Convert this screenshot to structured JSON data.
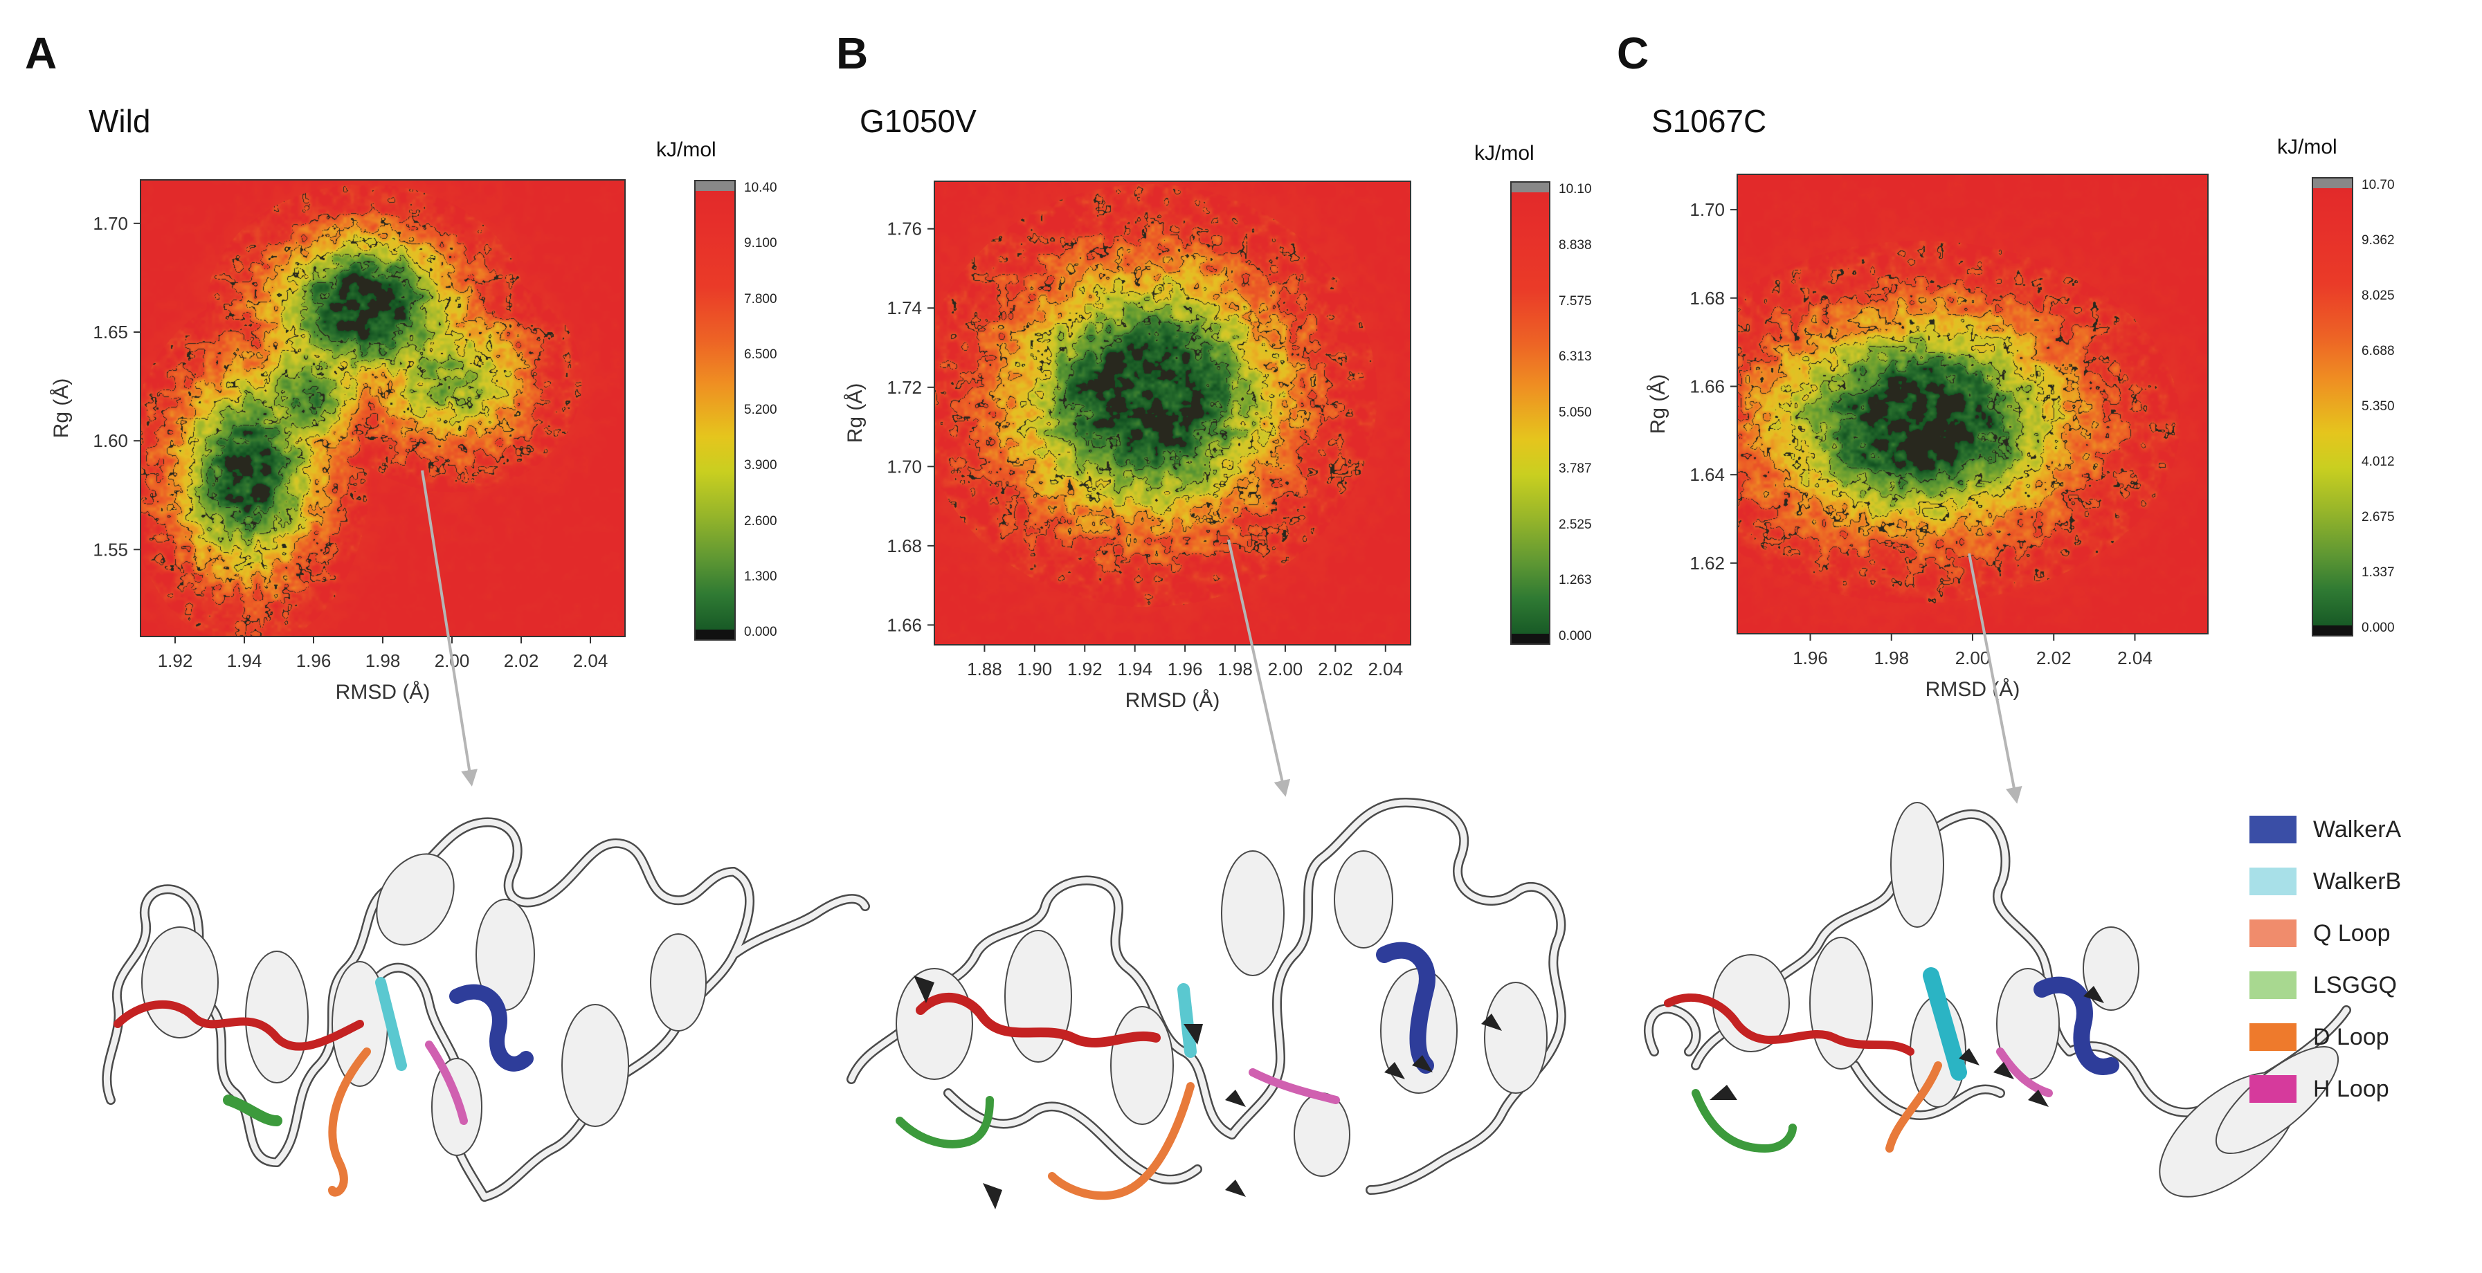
{
  "panels": [
    {
      "letter": "A",
      "title": "Wild",
      "chart_data": {
        "type": "heatmap",
        "title": "Wild",
        "xlabel": "RMSD (Å)",
        "ylabel": "Rg (Å)",
        "xlim": [
          1.91,
          2.05
        ],
        "ylim": [
          1.51,
          1.72
        ],
        "xticks": [
          "1.92",
          "1.94",
          "1.96",
          "1.98",
          "2.00",
          "2.02",
          "2.04"
        ],
        "yticks": [
          "1.55",
          "1.60",
          "1.65",
          "1.70"
        ],
        "colorbar_title": "kJ/mol",
        "colorbar_range": [
          0,
          10.4
        ],
        "colorbar_ticks": [
          "10.40",
          "9.100",
          "7.800",
          "6.500",
          "5.200",
          "3.900",
          "2.600",
          "1.300",
          "0.000"
        ],
        "basins": [
          {
            "x": 1.975,
            "y": 1.662,
            "sx": 0.018,
            "sy": 0.022,
            "depth": 10.4,
            "angle": 0
          },
          {
            "x": 1.941,
            "y": 1.585,
            "sx": 0.014,
            "sy": 0.032,
            "depth": 9.4,
            "angle": 0
          },
          {
            "x": 1.958,
            "y": 1.622,
            "sx": 0.012,
            "sy": 0.018,
            "depth": 7.0,
            "angle": 0
          },
          {
            "x": 2.0,
            "y": 1.628,
            "sx": 0.016,
            "sy": 0.022,
            "depth": 6.2,
            "angle": 0
          }
        ]
      }
    },
    {
      "letter": "B",
      "title": "G1050V",
      "chart_data": {
        "type": "heatmap",
        "title": "G1050V",
        "xlabel": "RMSD (Å)",
        "ylabel": "Rg (Å)",
        "xlim": [
          1.86,
          2.05
        ],
        "ylim": [
          1.655,
          1.772
        ],
        "xticks": [
          "1.88",
          "1.90",
          "1.92",
          "1.94",
          "1.96",
          "1.98",
          "2.00",
          "2.02",
          "2.04"
        ],
        "yticks": [
          "1.66",
          "1.68",
          "1.70",
          "1.72",
          "1.74",
          "1.76"
        ],
        "colorbar_title": "kJ/mol",
        "colorbar_range": [
          0,
          10.1
        ],
        "colorbar_ticks": [
          "10.10",
          "8.838",
          "7.575",
          "6.313",
          "5.050",
          "3.787",
          "2.525",
          "1.263",
          "0.000"
        ],
        "basins": [
          {
            "x": 1.945,
            "y": 1.718,
            "sx": 0.036,
            "sy": 0.021,
            "depth": 10.1,
            "angle": 0
          },
          {
            "x": 1.962,
            "y": 1.719,
            "sx": 0.016,
            "sy": 0.011,
            "depth": 2.0,
            "angle": 0
          },
          {
            "x": 1.915,
            "y": 1.714,
            "sx": 0.016,
            "sy": 0.011,
            "depth": 1.5,
            "angle": 0
          }
        ]
      }
    },
    {
      "letter": "C",
      "title": "S1067C",
      "chart_data": {
        "type": "heatmap",
        "title": "S1067C",
        "xlabel": "RMSD (Å)",
        "ylabel": "Rg (Å)",
        "xlim": [
          1.942,
          2.058
        ],
        "ylim": [
          1.604,
          1.708
        ],
        "xticks": [
          "1.96",
          "1.98",
          "2.00",
          "2.02",
          "2.04"
        ],
        "yticks": [
          "1.62",
          "1.64",
          "1.66",
          "1.68",
          "1.70"
        ],
        "colorbar_title": "kJ/mol",
        "colorbar_range": [
          0,
          10.7
        ],
        "colorbar_ticks": [
          "10.70",
          "9.362",
          "8.025",
          "6.688",
          "5.350",
          "4.012",
          "2.675",
          "1.337",
          "0.000"
        ],
        "basins": [
          {
            "x": 1.987,
            "y": 1.652,
            "sx": 0.025,
            "sy": 0.016,
            "depth": 10.7,
            "angle": 0
          },
          {
            "x": 1.985,
            "y": 1.654,
            "sx": 0.009,
            "sy": 0.006,
            "depth": 1.8,
            "angle": 0
          }
        ]
      }
    }
  ],
  "legend": {
    "items": [
      {
        "label": "WalkerA",
        "color": "#3a4ea6"
      },
      {
        "label": "WalkerB",
        "color": "#a8e0e8"
      },
      {
        "label": "Q Loop",
        "color": "#f08c6c"
      },
      {
        "label": "LSGGQ",
        "color": "#a8d890"
      },
      {
        "label": "D Loop",
        "color": "#ee7a2c"
      },
      {
        "label": "H Loop",
        "color": "#d63a9c"
      }
    ]
  },
  "colors": {
    "background_red": "#e22a2a",
    "connector_gray": "#b5b5b5",
    "ribbon_white": "#f0f0f0",
    "ribbon_outline": "#4a4a4a",
    "red_segment": "#c42222",
    "green_segment": "#3c9a3c",
    "cyan_segment": "#5ac8d0",
    "blue_segment": "#2e3d9a",
    "orange_segment": "#e87a3a",
    "pink_segment": "#d060b0"
  }
}
